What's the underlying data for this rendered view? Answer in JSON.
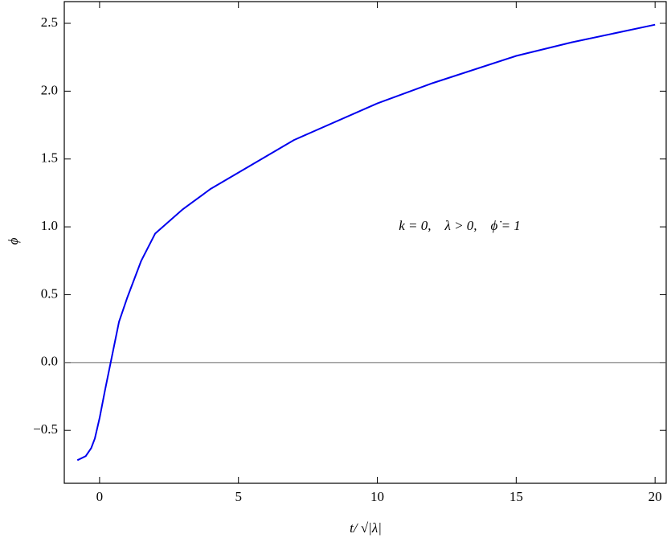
{
  "chart_data": {
    "type": "line",
    "xlabel": "t/ √|λ|",
    "ylabel": "ϕ",
    "annotation": "k = 0,    λ > 0,    ϕ̇ = 1",
    "x": [
      -0.8,
      -0.5,
      -0.3,
      -0.17,
      0,
      0.2,
      0.4,
      0.7,
      1,
      1.5,
      2,
      3,
      4,
      5,
      7,
      10,
      12,
      15,
      17,
      20
    ],
    "series": [
      {
        "name": "phi",
        "color": "#0000ee",
        "values": [
          -0.72,
          -0.69,
          -0.63,
          -0.56,
          -0.41,
          -0.2,
          0.0,
          0.3,
          0.48,
          0.75,
          0.95,
          1.13,
          1.28,
          1.4,
          1.64,
          1.91,
          2.06,
          2.26,
          2.36,
          2.49
        ]
      }
    ],
    "xlim": [
      -1.27,
      20.4
    ],
    "ylim": [
      -0.89,
      2.66
    ],
    "xticks": [
      0,
      5,
      10,
      15,
      20
    ],
    "yticks": [
      {
        "value": -0.5,
        "label": "−0.5"
      },
      {
        "value": 0,
        "label": "0.0"
      },
      {
        "value": 0.5,
        "label": "0.5"
      },
      {
        "value": 1,
        "label": "1.0"
      },
      {
        "value": 1.5,
        "label": "1.5"
      },
      {
        "value": 2,
        "label": "2.0"
      },
      {
        "value": 2.5,
        "label": "2.5"
      }
    ],
    "zero_line": true
  }
}
